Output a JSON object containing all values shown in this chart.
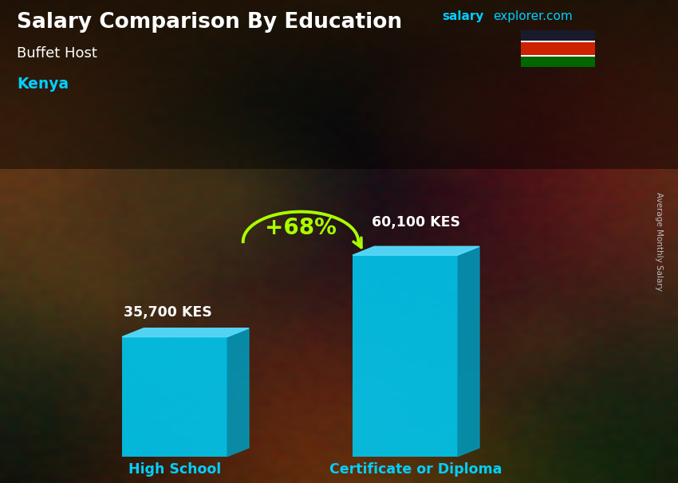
{
  "title": "Salary Comparison By Education",
  "subtitle": "Buffet Host",
  "country": "Kenya",
  "categories": [
    "High School",
    "Certificate or Diploma"
  ],
  "values": [
    35700,
    60100
  ],
  "value_labels": [
    "35,700 KES",
    "60,100 KES"
  ],
  "pct_change": "+68%",
  "bar_color_face": "#00c8f0",
  "bar_color_right": "#0099bb",
  "bar_color_top": "#55ddff",
  "ylabel": "Average Monthly Salary",
  "title_color": "#ffffff",
  "subtitle_color": "#ffffff",
  "country_color": "#00cfff",
  "category_color": "#00cfff",
  "value_label_color": "#ffffff",
  "pct_color": "#aaff00",
  "arrow_color": "#aaff00",
  "site_salary_color": "#00cfff",
  "site_explorer_color": "#00cfff",
  "bg_colors": [
    "#2a1a0a",
    "#3d2510",
    "#1a0f05",
    "#4a2f15",
    "#2a1a0a"
  ],
  "flag_black": "#1a1a2e",
  "flag_red": "#cc2200",
  "flag_green": "#006600",
  "flag_white": "#ffffff"
}
